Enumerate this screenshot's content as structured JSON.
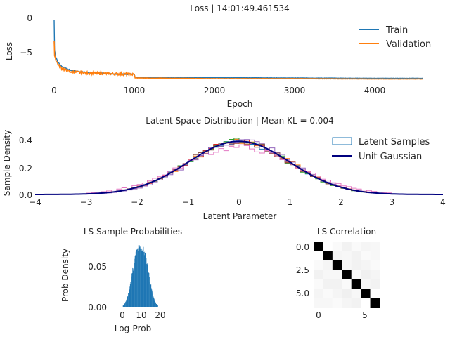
{
  "chart_data": [
    {
      "type": "line",
      "title": "Loss | 14:01:49.461534",
      "xlabel": "Epoch",
      "ylabel": "Loss",
      "xlim": [
        -150,
        4700
      ],
      "ylim": [
        -8.9,
        0.6
      ],
      "xticks": [
        "0",
        "1000",
        "2000",
        "3000",
        "4000"
      ],
      "yticks": [
        "0",
        "−5"
      ],
      "grid": false,
      "legend": "top-right",
      "series": [
        {
          "name": "Train",
          "color": "#1f77b4",
          "x": [
            0,
            5,
            20,
            50,
            100,
            200,
            400,
            700,
            1000,
            1010,
            2000,
            3000,
            4000,
            4600
          ],
          "y": [
            -0.3,
            -4.5,
            -5.6,
            -6.4,
            -7.0,
            -7.5,
            -7.8,
            -8.0,
            -8.1,
            -8.5,
            -8.55,
            -8.6,
            -8.65,
            -8.65
          ]
        },
        {
          "name": "Validation",
          "color": "#ff7f0e",
          "x": [
            0,
            5,
            20,
            50,
            100,
            200,
            400,
            700,
            1000,
            1010,
            2000,
            3000,
            4000,
            4600
          ],
          "y": [
            -3.5,
            -5.3,
            -6.0,
            -6.7,
            -7.3,
            -7.7,
            -7.9,
            -8.0,
            -8.1,
            -8.6,
            -8.7,
            -8.7,
            -8.75,
            -8.75
          ]
        }
      ]
    },
    {
      "type": "histogram",
      "title": "Latent Space Distribution | Mean KL = 0.004",
      "xlabel": "Latent Parameter",
      "ylabel": "Sample Density",
      "xlim": [
        -4,
        4
      ],
      "ylim": [
        0,
        0.47
      ],
      "xticks": [
        "−4",
        "−3",
        "−2",
        "−1",
        "0",
        "1",
        "2",
        "3",
        "4"
      ],
      "yticks": [
        "0.0",
        "0.2",
        "0.4"
      ],
      "legend": "top-right",
      "legend_entries": [
        "Latent Samples",
        "Unit Gaussian"
      ],
      "bins": 60,
      "hist_range": [
        -3,
        3
      ],
      "series": [
        {
          "color": "#1f77b4",
          "mean": 0.0,
          "std": 1.0
        },
        {
          "color": "#ff7f0e",
          "mean": 0.02,
          "std": 1.0
        },
        {
          "color": "#2ca02c",
          "mean": -0.03,
          "std": 0.99
        },
        {
          "color": "#d62728",
          "mean": 0.0,
          "std": 1.01
        },
        {
          "color": "#9467bd",
          "mean": 0.05,
          "std": 0.98
        },
        {
          "color": "#8c564b",
          "mean": -0.02,
          "std": 1.0
        },
        {
          "color": "#e377c2",
          "mean": 0.0,
          "std": 1.12
        }
      ],
      "gaussian": {
        "color": "#00007f",
        "mean": 0,
        "std": 1
      }
    },
    {
      "type": "histogram",
      "title": "LS Sample Probabilities",
      "xlabel": "Log-Prob",
      "ylabel": "Prob Density",
      "xlim": [
        -5,
        24
      ],
      "ylim": [
        0,
        0.078
      ],
      "xticks": [
        "0",
        "10",
        "20"
      ],
      "yticks": [
        "0.00",
        "0.05"
      ],
      "color": "#1f77b4",
      "range": [
        -1,
        20
      ],
      "bins": 100,
      "peak": 0.072,
      "center": 9.5,
      "spread": 4.2
    },
    {
      "type": "heatmap",
      "title": "LS Correlation",
      "colormap": "gray_r",
      "xticks": [
        "0",
        "5"
      ],
      "yticks": [
        "0.0",
        "2.5",
        "5.0"
      ],
      "size": 7,
      "matrix": [
        [
          1.0,
          0.0,
          0.02,
          0.05,
          0.02,
          0.04,
          0.03
        ],
        [
          0.0,
          1.0,
          0.04,
          0.03,
          0.05,
          0.02,
          0.03
        ],
        [
          0.02,
          0.04,
          1.0,
          0.03,
          0.05,
          0.04,
          0.02
        ],
        [
          0.05,
          0.03,
          0.03,
          1.0,
          0.02,
          0.06,
          0.04
        ],
        [
          0.02,
          0.05,
          0.05,
          0.02,
          1.0,
          0.03,
          0.05
        ],
        [
          0.04,
          0.02,
          0.04,
          0.06,
          0.03,
          1.0,
          0.0
        ],
        [
          0.03,
          0.03,
          0.02,
          0.04,
          0.05,
          0.0,
          1.0
        ]
      ]
    }
  ]
}
